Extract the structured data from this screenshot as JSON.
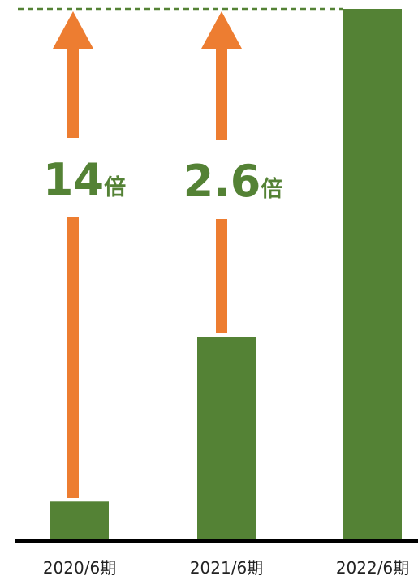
{
  "chart_data": {
    "type": "bar",
    "categories": [
      "2020/6期",
      "2021/6期",
      "2022/6期"
    ],
    "values": [
      7,
      38,
      100
    ],
    "ylim": [
      0,
      100
    ],
    "grid": false,
    "reference_line": {
      "value": 100,
      "style": "dashed"
    },
    "annotations": [
      {
        "from_category": "2020/6期",
        "to_value": 100,
        "multiplier": "14",
        "unit": "倍"
      },
      {
        "from_category": "2021/6期",
        "to_value": 100,
        "multiplier": "2.6",
        "unit": "倍"
      }
    ],
    "colors": {
      "bar": "#548235",
      "arrow": "#ED7D31",
      "text": "#548235",
      "axis": "#000000"
    }
  }
}
